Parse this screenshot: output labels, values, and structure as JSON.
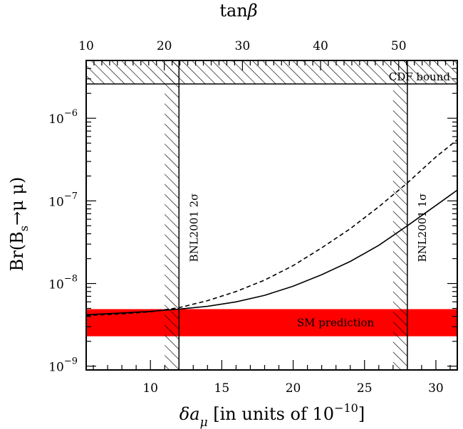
{
  "chart_data": {
    "type": "line",
    "bottom_axis": {
      "label": "δa_μ [in units of 10^{-10}]",
      "label_parts": {
        "symbol_main": "δa",
        "symbol_sub": "μ",
        "text": " [in units of 10",
        "exp": "−10",
        "close": "]"
      },
      "range": [
        5.5,
        31.5
      ],
      "ticks": [
        10,
        15,
        20,
        25,
        30
      ],
      "tick_labels": [
        "10",
        "15",
        "20",
        "25",
        "30"
      ]
    },
    "top_axis": {
      "label": "tanβ",
      "range": [
        10,
        57.5
      ],
      "ticks": [
        10,
        20,
        30,
        40,
        50
      ],
      "tick_labels": [
        "10",
        "20",
        "30",
        "40",
        "50"
      ]
    },
    "y_axis": {
      "label": "Br(B_s→μ μ)",
      "label_parts": {
        "pre": "Br(B",
        "sub": "s",
        "post": "→μ μ)"
      },
      "scale": "log",
      "range": [
        9e-10,
        5e-06
      ],
      "ticks": [
        1e-09,
        1e-08,
        1e-07,
        1e-06
      ],
      "tick_labels": [
        {
          "base": "10",
          "exp": "−9"
        },
        {
          "base": "10",
          "exp": "−8"
        },
        {
          "base": "10",
          "exp": "−7"
        },
        {
          "base": "10",
          "exp": "−6"
        }
      ]
    },
    "series": [
      {
        "style": "solid",
        "x": [
          5.5,
          8,
          10,
          12,
          14,
          16,
          18,
          20,
          22,
          24,
          26,
          28,
          30,
          31.5
        ],
        "y": [
          4.2e-09,
          4.4e-09,
          4.6e-09,
          4.9e-09,
          5.3e-09,
          6e-09,
          7.2e-09,
          9.3e-09,
          1.28e-08,
          1.85e-08,
          2.9e-08,
          5e-08,
          8.8e-08,
          1.35e-07
        ]
      },
      {
        "style": "dashed",
        "x": [
          5.5,
          8,
          10,
          12,
          14,
          16,
          18,
          20,
          22,
          24,
          26,
          28,
          30,
          31.5
        ],
        "y": [
          4.1e-09,
          4.3e-09,
          4.55e-09,
          5.1e-09,
          6.2e-09,
          8e-09,
          1.1e-08,
          1.65e-08,
          2.7e-08,
          4.6e-08,
          8.5e-08,
          1.65e-07,
          3.4e-07,
          5.5e-07
        ]
      }
    ],
    "bands": [
      {
        "orientation": "horizontal",
        "range": [
          2.3e-09,
          4.9e-09
        ],
        "fill": "#ff0000",
        "label": "SM prediction"
      },
      {
        "orientation": "horizontal",
        "range": [
          2.6e-06,
          5e-06
        ],
        "fill": "hatched",
        "label": "CDF bound"
      },
      {
        "orientation": "vertical",
        "range": [
          11,
          12
        ],
        "fill": "hatched",
        "label": "BNL2001 2σ"
      },
      {
        "orientation": "vertical",
        "range": [
          27,
          28
        ],
        "fill": "hatched",
        "label": "BNL2001 1σ"
      }
    ],
    "colors": {
      "lines": "#000000",
      "band": "#ff0000",
      "frame": "#000000"
    },
    "grid": false
  }
}
